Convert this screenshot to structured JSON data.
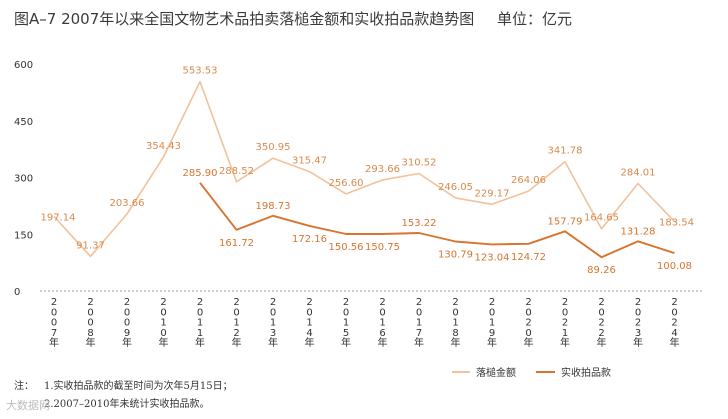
{
  "header": {
    "title": "图A–7  2007年以来全国文物艺术品拍卖落槌金额和实收拍品款趋势图",
    "unit": "单位：亿元"
  },
  "colors": {
    "hammer": "#f2c29a",
    "actual": "#d8742e",
    "label": "#d98a4b",
    "axis": "#9a9a9a"
  },
  "chart_data": {
    "type": "line",
    "title": "图A–7  2007年以来全国文物艺术品拍卖落槌金额和实收拍品款趋势图",
    "unit": "单位：亿元",
    "ylim": [
      0,
      600
    ],
    "yticks": [
      "0",
      "150",
      "300",
      "450",
      "600"
    ],
    "grid": false,
    "legend_position": "bottom-center",
    "x": [
      "2007年",
      "2008年",
      "2009年",
      "2010年",
      "2011年",
      "2012年",
      "2013年",
      "2014年",
      "2015年",
      "2016年",
      "2017年",
      "2018年",
      "2019年",
      "2020年",
      "2021年",
      "2022年",
      "2023年",
      "2024年"
    ],
    "series": [
      {
        "name": "落槌金额",
        "values": [
          197.14,
          91.37,
          203.66,
          354.43,
          553.53,
          288.52,
          350.95,
          315.47,
          256.6,
          293.66,
          310.52,
          246.05,
          229.17,
          264.06,
          341.78,
          164.65,
          284.01,
          183.54
        ],
        "labels": [
          "197.14",
          "91.37",
          "203.66",
          "354.43",
          "553.53",
          "288.52",
          "350.95",
          "315.47",
          "256.60",
          "293.66",
          "310.52",
          "246.05",
          "229.17",
          "264.06",
          "341.78",
          "164.65",
          "284.01",
          "183.54"
        ]
      },
      {
        "name": "实收拍品款",
        "values": [
          null,
          null,
          null,
          null,
          285.9,
          161.72,
          198.73,
          172.16,
          150.56,
          150.75,
          153.22,
          130.79,
          123.04,
          124.72,
          157.79,
          89.26,
          131.28,
          100.08
        ],
        "labels": [
          null,
          null,
          null,
          null,
          "285.90",
          "161.72",
          "198.73",
          "172.16",
          "150.56",
          "150.75",
          "153.22",
          "130.79",
          "123.04",
          "124.72",
          "157.79",
          "89.26",
          "131.28",
          "100.08"
        ]
      }
    ]
  },
  "notes": [
    {
      "lead": "注：",
      "num": "1.",
      "text": "实收拍品款的截至时间为次年5月15日；"
    },
    {
      "lead": "",
      "num": "2.",
      "text": "2007–2010年未统计实收拍品款。"
    }
  ],
  "watermark": "大数据网"
}
